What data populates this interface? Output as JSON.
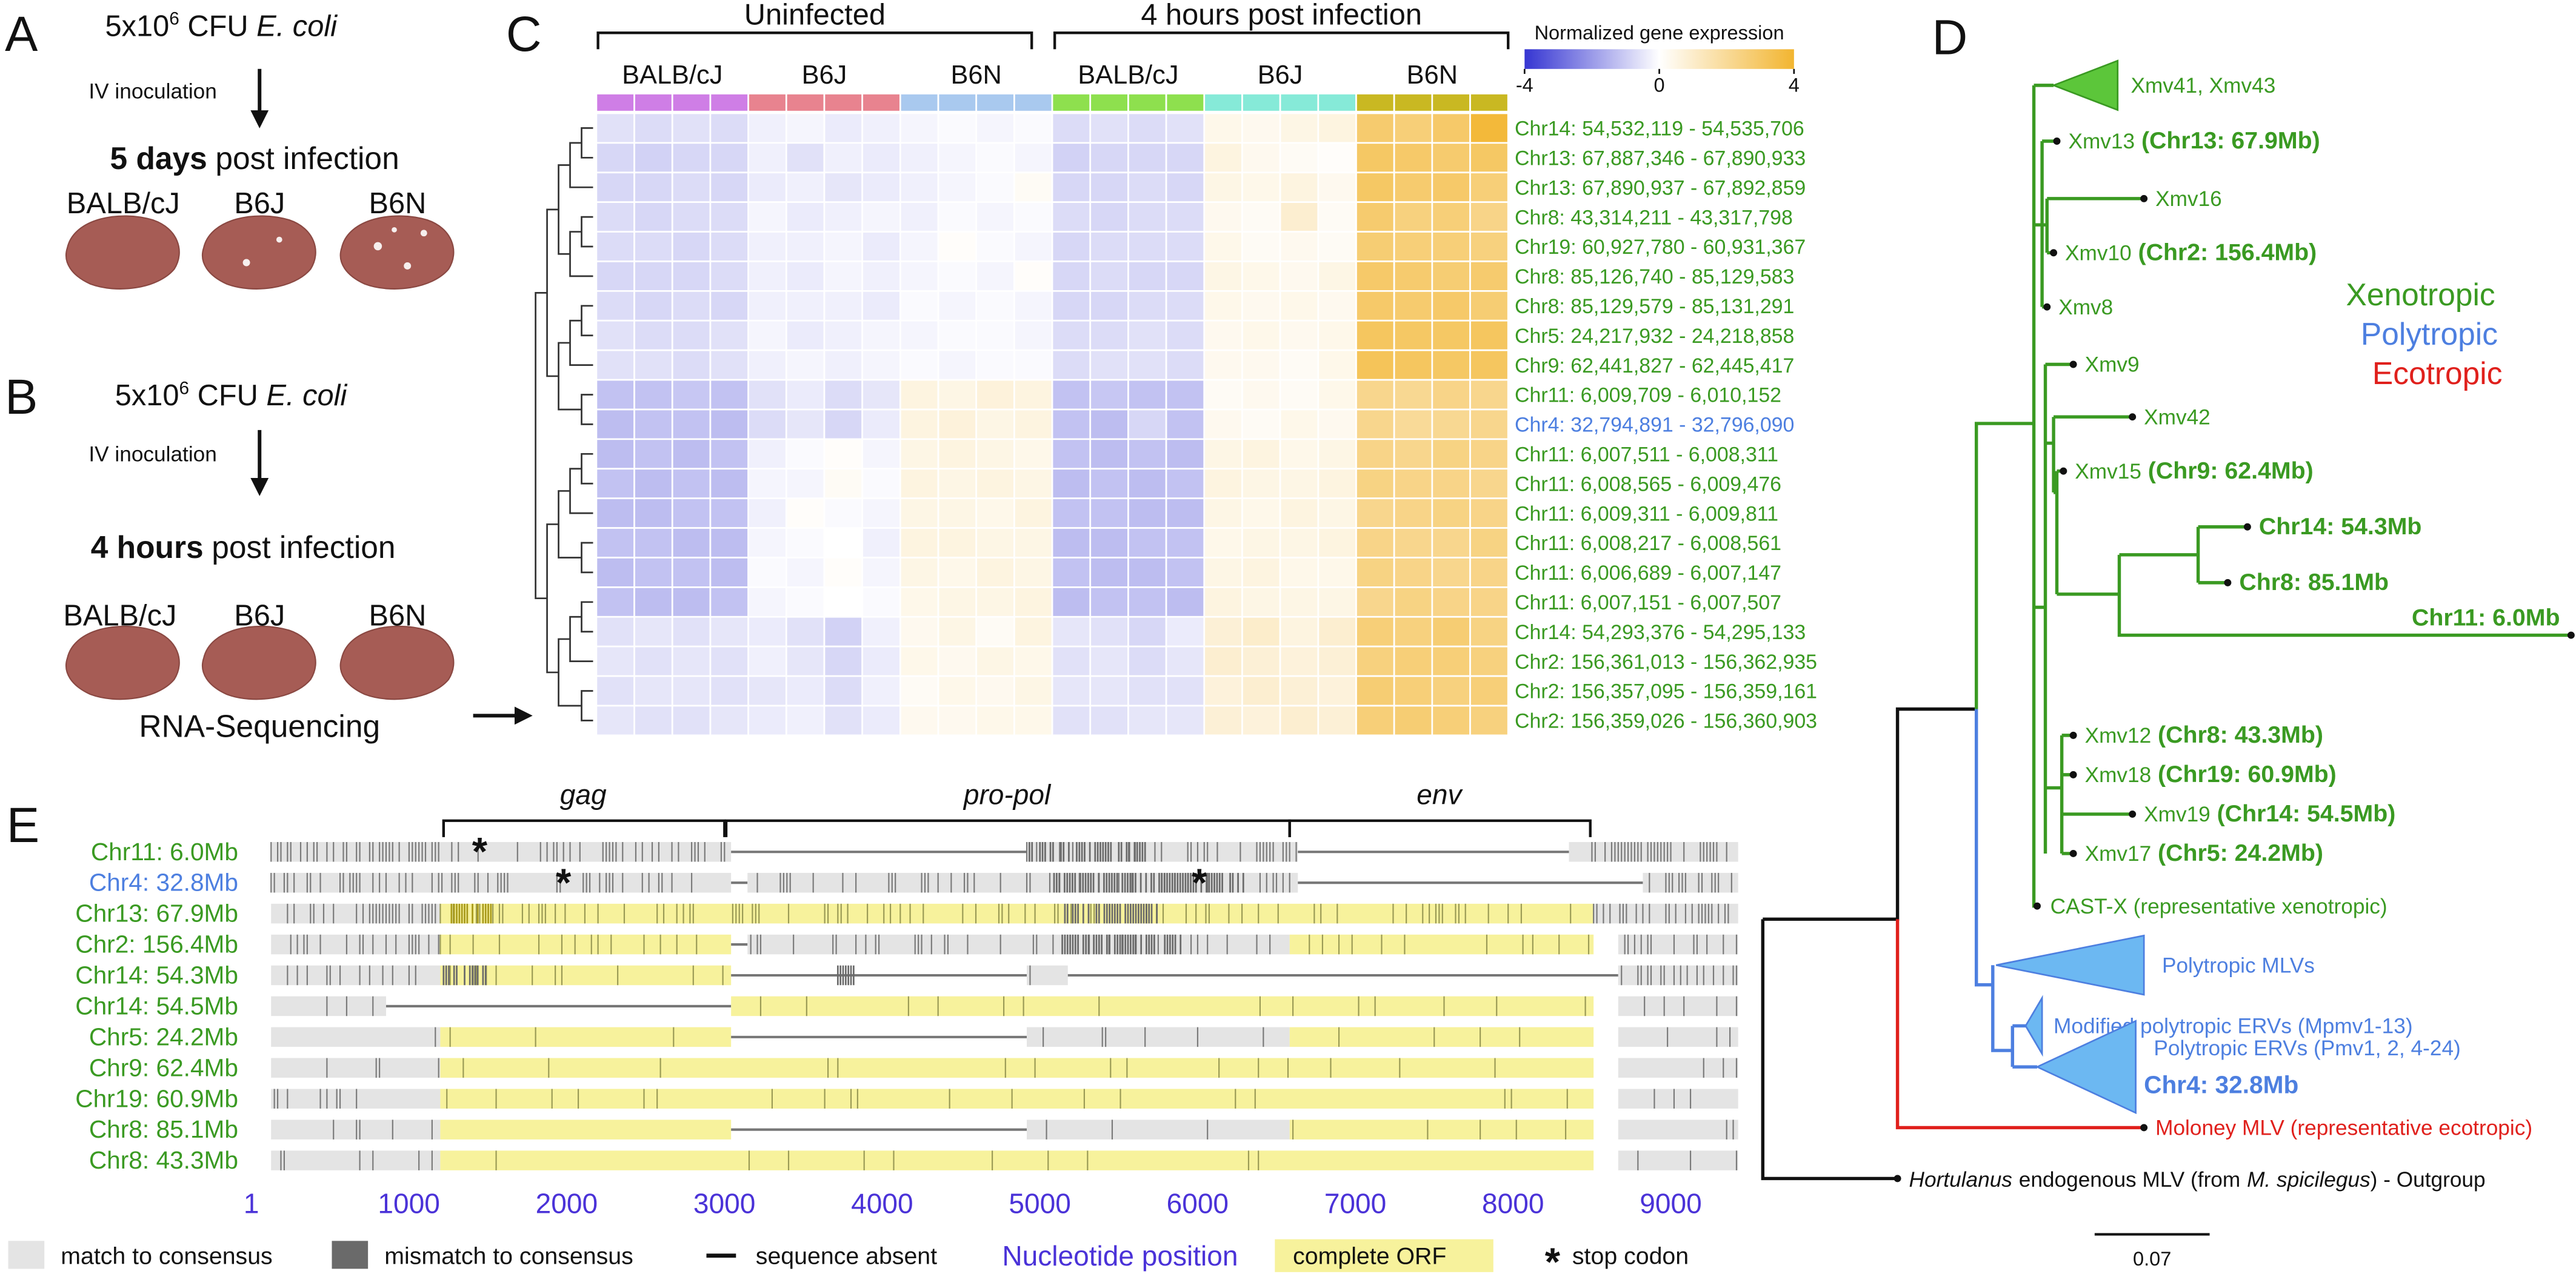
{
  "panel_a": {
    "letter": "A",
    "inoculum": {
      "base": "5x10",
      "exp": "6",
      "unit": "CFU",
      "organism": "E. coli"
    },
    "route": "IV inoculation",
    "timepoint": {
      "bold": "5 days",
      "rest": "post infection"
    },
    "strains": [
      "BALB/cJ",
      "B6J",
      "B6N"
    ]
  },
  "panel_b": {
    "letter": "B",
    "inoculum": {
      "base": "5x10",
      "exp": "6",
      "unit": "CFU",
      "organism": "E. coli"
    },
    "route": "IV inoculation",
    "timepoint": {
      "bold": "4 hours",
      "rest": "post infection"
    },
    "strains": [
      "BALB/cJ",
      "B6J",
      "B6N"
    ],
    "assay": "RNA-Sequencing"
  },
  "panel_c": {
    "letter": "C",
    "conditions": [
      "Uninfected",
      "4 hours post infection"
    ],
    "strains": [
      "BALB/cJ",
      "B6J",
      "B6N"
    ],
    "group_colors": [
      "#cf7ee6",
      "#e8838f",
      "#a9c9ef",
      "#8ee04e",
      "#86ead8",
      "#c9b822"
    ],
    "colorbar": {
      "title": "Normalized gene expression",
      "ticks": [
        -4,
        0,
        4
      ],
      "low": "#3535d2",
      "mid": "#ffffff",
      "high": "#f2b530"
    },
    "rows": [
      {
        "label": "Chr14: 54,532,119 - 54,535,706",
        "color": "#3a9a22"
      },
      {
        "label": "Chr13: 67,887,346 - 67,890,933",
        "color": "#3a9a22"
      },
      {
        "label": "Chr13: 67,890,937 - 67,892,859",
        "color": "#3a9a22"
      },
      {
        "label": "Chr8: 43,314,211 - 43,317,798",
        "color": "#3a9a22"
      },
      {
        "label": "Chr19: 60,927,780 - 60,931,367",
        "color": "#3a9a22"
      },
      {
        "label": "Chr8: 85,126,740 - 85,129,583",
        "color": "#3a9a22"
      },
      {
        "label": "Chr8: 85,129,579 - 85,131,291",
        "color": "#3a9a22"
      },
      {
        "label": "Chr5: 24,217,932 - 24,218,858",
        "color": "#3a9a22"
      },
      {
        "label": "Chr9: 62,441,827 - 62,445,417",
        "color": "#3a9a22"
      },
      {
        "label": "Chr11: 6,009,709 - 6,010,152",
        "color": "#3a9a22"
      },
      {
        "label": "Chr4: 32,794,891 - 32,796,090",
        "color": "#4d7fe0"
      },
      {
        "label": "Chr11: 6,007,511 - 6,008,311",
        "color": "#3a9a22"
      },
      {
        "label": "Chr11: 6,008,565 - 6,009,476",
        "color": "#3a9a22"
      },
      {
        "label": "Chr11: 6,009,311 - 6,009,811",
        "color": "#3a9a22"
      },
      {
        "label": "Chr11: 6,008,217 - 6,008,561",
        "color": "#3a9a22"
      },
      {
        "label": "Chr11: 6,006,689 - 6,007,147",
        "color": "#3a9a22"
      },
      {
        "label": "Chr11: 6,007,151 - 6,007,507",
        "color": "#3a9a22"
      },
      {
        "label": "Chr14: 54,293,376 - 54,295,133",
        "color": "#3a9a22"
      },
      {
        "label": "Chr2: 156,361,013 - 156,362,935",
        "color": "#3a9a22"
      },
      {
        "label": "Chr2: 156,357,095 - 156,359,161",
        "color": "#3a9a22"
      },
      {
        "label": "Chr2: 156,359,026 - 156,360,903",
        "color": "#3a9a22"
      }
    ],
    "values": [
      [
        -0.6,
        -0.7,
        -0.6,
        -0.7,
        -0.3,
        -0.2,
        -0.4,
        -0.3,
        -0.2,
        -0.1,
        -0.2,
        -0.1,
        -0.7,
        -0.6,
        -0.7,
        -0.6,
        0.4,
        0.3,
        0.5,
        0.6,
        2.8,
        2.6,
        2.9,
        3.8
      ],
      [
        -0.8,
        -0.9,
        -0.8,
        -0.8,
        -0.3,
        -0.6,
        -0.3,
        -0.4,
        -0.3,
        -0.2,
        -0.1,
        -0.2,
        -0.9,
        -0.8,
        -0.8,
        -0.8,
        0.6,
        0.3,
        0.2,
        0.1,
        3.0,
        2.9,
        2.8,
        3.0
      ],
      [
        -0.8,
        -0.8,
        -0.7,
        -0.8,
        -0.4,
        -0.3,
        -0.5,
        -0.4,
        -0.3,
        -0.2,
        -0.1,
        0.2,
        -0.8,
        -0.8,
        -0.7,
        -0.8,
        0.5,
        0.4,
        0.6,
        0.3,
        3.0,
        2.8,
        2.9,
        2.6
      ],
      [
        -0.7,
        -0.8,
        -0.7,
        -0.7,
        -0.2,
        -0.4,
        -0.3,
        -0.2,
        -0.3,
        -0.1,
        -0.2,
        -0.1,
        -0.7,
        -0.8,
        -0.7,
        -0.7,
        0.3,
        0.2,
        0.9,
        0.2,
        2.8,
        2.5,
        2.6,
        2.3
      ],
      [
        -0.7,
        -0.7,
        -0.8,
        -0.7,
        -0.3,
        -0.3,
        -0.2,
        -0.4,
        -0.2,
        0.1,
        -0.1,
        -0.2,
        -0.8,
        -0.7,
        -0.7,
        -0.7,
        0.4,
        0.2,
        0.3,
        0.2,
        2.7,
        2.6,
        2.6,
        2.5
      ],
      [
        -0.8,
        -0.8,
        -0.8,
        -0.7,
        -0.3,
        -0.4,
        -0.2,
        -0.3,
        -0.2,
        -0.1,
        -0.2,
        0.1,
        -0.8,
        -0.7,
        -0.8,
        -0.8,
        0.5,
        0.4,
        0.3,
        0.5,
        2.9,
        2.8,
        2.7,
        2.8
      ],
      [
        -0.7,
        -0.8,
        -0.7,
        -0.8,
        -0.3,
        -0.3,
        -0.3,
        -0.4,
        -0.1,
        -0.2,
        -0.1,
        -0.2,
        -0.8,
        -0.8,
        -0.7,
        -0.7,
        0.4,
        0.3,
        0.4,
        0.3,
        2.9,
        2.8,
        2.9,
        2.7
      ],
      [
        -0.6,
        -0.7,
        -0.7,
        -0.6,
        -0.2,
        -0.4,
        -0.3,
        -0.2,
        -0.2,
        -0.1,
        -0.1,
        -0.2,
        -0.7,
        -0.7,
        -0.6,
        -0.7,
        0.3,
        0.4,
        0.3,
        0.4,
        3.1,
        3.0,
        3.0,
        3.1
      ],
      [
        -0.6,
        -0.6,
        -0.7,
        -0.6,
        -0.3,
        -0.2,
        -0.3,
        -0.2,
        -0.1,
        -0.2,
        -0.1,
        -0.1,
        -0.7,
        -0.6,
        -0.6,
        -0.7,
        0.3,
        0.3,
        0.2,
        0.4,
        3.2,
        3.1,
        3.0,
        3.1
      ],
      [
        -1.2,
        -1.2,
        -1.1,
        -1.2,
        -0.6,
        -0.4,
        -0.7,
        -0.5,
        0.6,
        0.5,
        0.7,
        0.6,
        -1.2,
        -1.1,
        -1.2,
        -1.2,
        0.2,
        0.3,
        0.2,
        0.4,
        2.2,
        2.1,
        2.3,
        2.2
      ],
      [
        -1.3,
        -1.2,
        -1.2,
        -1.3,
        -0.7,
        -0.5,
        -0.8,
        -0.4,
        0.6,
        0.7,
        0.5,
        0.6,
        -1.2,
        -1.3,
        -0.8,
        -1.2,
        0.3,
        0.2,
        0.4,
        0.3,
        2.2,
        2.0,
        2.1,
        2.2
      ],
      [
        -1.3,
        -1.2,
        -1.3,
        -1.2,
        -0.3,
        -0.1,
        0.1,
        -0.2,
        0.5,
        0.6,
        0.5,
        0.4,
        -1.2,
        -1.3,
        -1.2,
        -1.3,
        0.5,
        0.6,
        0.4,
        0.5,
        2.3,
        2.2,
        2.4,
        2.3
      ],
      [
        -1.2,
        -1.3,
        -1.2,
        -1.3,
        -0.2,
        -0.2,
        0.2,
        -0.1,
        0.6,
        0.5,
        0.6,
        0.5,
        -1.3,
        -1.2,
        -1.3,
        -1.2,
        0.6,
        0.5,
        0.5,
        0.6,
        2.4,
        2.3,
        2.3,
        2.2
      ],
      [
        -1.3,
        -1.3,
        -1.2,
        -1.2,
        -0.3,
        0.1,
        -0.1,
        -0.2,
        0.5,
        0.5,
        0.4,
        0.6,
        -1.2,
        -1.2,
        -1.3,
        -1.3,
        0.5,
        0.4,
        0.6,
        0.5,
        2.2,
        2.3,
        2.4,
        2.3
      ],
      [
        -1.2,
        -1.2,
        -1.3,
        -1.3,
        -0.2,
        -0.1,
        0.0,
        -0.3,
        0.6,
        0.6,
        0.5,
        0.5,
        -1.3,
        -1.3,
        -1.2,
        -1.2,
        0.4,
        0.5,
        0.5,
        0.6,
        2.3,
        2.2,
        2.2,
        2.4
      ],
      [
        -1.3,
        -1.2,
        -1.2,
        -1.3,
        -0.1,
        -0.2,
        0.1,
        -0.2,
        0.5,
        0.4,
        0.6,
        0.5,
        -1.2,
        -1.3,
        -1.3,
        -1.2,
        0.5,
        0.6,
        0.4,
        0.4,
        2.4,
        2.3,
        2.2,
        2.3
      ],
      [
        -1.2,
        -1.3,
        -1.3,
        -1.2,
        -0.2,
        -0.1,
        0.0,
        -0.1,
        0.4,
        0.5,
        0.5,
        0.6,
        -1.3,
        -1.2,
        -1.2,
        -1.3,
        0.6,
        0.5,
        0.5,
        0.5,
        2.2,
        2.4,
        2.3,
        2.3
      ],
      [
        -0.6,
        -0.5,
        -0.6,
        -0.5,
        -0.4,
        -0.6,
        -0.9,
        -0.3,
        0.3,
        0.5,
        0.2,
        0.6,
        -0.5,
        -0.6,
        -0.8,
        -0.4,
        0.8,
        1.0,
        0.6,
        0.9,
        2.6,
        2.5,
        2.7,
        2.4
      ],
      [
        -0.5,
        -0.6,
        -0.5,
        -0.6,
        -0.3,
        -0.5,
        -0.8,
        -0.4,
        0.4,
        0.3,
        0.5,
        0.4,
        -0.6,
        -0.5,
        -0.7,
        -0.5,
        0.9,
        0.8,
        0.7,
        0.8,
        2.5,
        2.6,
        2.6,
        2.5
      ],
      [
        -0.6,
        -0.5,
        -0.5,
        -0.6,
        -0.5,
        -0.4,
        -0.7,
        -0.3,
        0.2,
        0.4,
        0.3,
        0.5,
        -0.5,
        -0.5,
        -0.6,
        -0.6,
        0.7,
        0.9,
        0.8,
        0.7,
        2.7,
        2.6,
        2.5,
        2.6
      ],
      [
        -0.5,
        -0.6,
        -0.6,
        -0.5,
        -0.4,
        -0.3,
        -0.6,
        -0.4,
        0.3,
        0.3,
        0.4,
        0.4,
        -0.6,
        -0.6,
        -0.5,
        -0.5,
        0.8,
        0.7,
        0.9,
        0.8,
        2.6,
        2.7,
        2.6,
        2.5
      ]
    ]
  },
  "panel_d": {
    "letter": "D",
    "legend": [
      {
        "name": "Xenotropic",
        "color": "#3a9a22"
      },
      {
        "name": "Polytropic",
        "color": "#4d7fe0"
      },
      {
        "name": "Ecotropic",
        "color": "#e0201c"
      }
    ],
    "leaves": [
      {
        "name": "Xmv41, Xmv43"
      },
      {
        "name": "Xmv13",
        "bold": "(Chr13: 67.9Mb)"
      },
      {
        "name": "Xmv16"
      },
      {
        "name": "Xmv10",
        "bold": "(Chr2: 156.4Mb)"
      },
      {
        "name": "Xmv8"
      },
      {
        "name": "Xmv9"
      },
      {
        "name": "Xmv42"
      },
      {
        "name": "Xmv15",
        "bold": "(Chr9: 62.4Mb)"
      },
      {
        "bold": "Chr14: 54.3Mb"
      },
      {
        "bold": "Chr8: 85.1Mb"
      },
      {
        "bold": "Chr11: 6.0Mb"
      },
      {
        "name": "Xmv12",
        "bold": "(Chr8: 43.3Mb)"
      },
      {
        "name": "Xmv18",
        "bold": "(Chr19: 60.9Mb)"
      },
      {
        "name": "Xmv19",
        "bold": "(Chr14: 54.5Mb)"
      },
      {
        "name": "Xmv17",
        "bold": "(Chr5: 24.2Mb)"
      },
      {
        "name": "CAST-X (representative xenotropic)"
      },
      {
        "name": "Polytropic MLVs"
      },
      {
        "name": "Modified polytropic ERVs (Mpmv1-13)"
      },
      {
        "name": "Polytropic ERVs (Pmv1, 2, 4-24)",
        "bold": "Chr4: 32.8Mb"
      },
      {
        "name": "Moloney MLV (representative ecotropic)"
      }
    ],
    "outgroup": {
      "italic1": "Hortulanus",
      "text1": "endogenous MLV (from",
      "italic2": "M. spicilegus",
      "text2": ") - Outgroup"
    },
    "scale": "0.07"
  },
  "panel_e": {
    "letter": "E",
    "genes": [
      "gag",
      "pro-pol",
      "env"
    ],
    "tracks": [
      {
        "label": "Chr11: 6.0Mb",
        "color": "#3a9a22"
      },
      {
        "label": "Chr4: 32.8Mb",
        "color": "#4d7fe0"
      },
      {
        "label": "Chr13: 67.9Mb",
        "color": "#3a9a22"
      },
      {
        "label": "Chr2: 156.4Mb",
        "color": "#3a9a22"
      },
      {
        "label": "Chr14: 54.3Mb",
        "color": "#3a9a22"
      },
      {
        "label": "Chr14: 54.5Mb",
        "color": "#3a9a22"
      },
      {
        "label": "Chr5: 24.2Mb",
        "color": "#3a9a22"
      },
      {
        "label": "Chr9: 62.4Mb",
        "color": "#3a9a22"
      },
      {
        "label": "Chr19: 60.9Mb",
        "color": "#3a9a22"
      },
      {
        "label": "Chr8: 85.1Mb",
        "color": "#3a9a22"
      },
      {
        "label": "Chr8: 43.3Mb",
        "color": "#3a9a22"
      }
    ],
    "xticks": [
      1,
      1000,
      2000,
      3000,
      4000,
      5000,
      6000,
      7000,
      8000,
      9000
    ],
    "x_title": "Nucleotide position",
    "stop": "*",
    "legend": {
      "match": "match to consensus",
      "mismatch": "mismatch to consensus",
      "absent": "sequence absent",
      "orf": "complete ORF",
      "stop": "stop codon"
    }
  }
}
